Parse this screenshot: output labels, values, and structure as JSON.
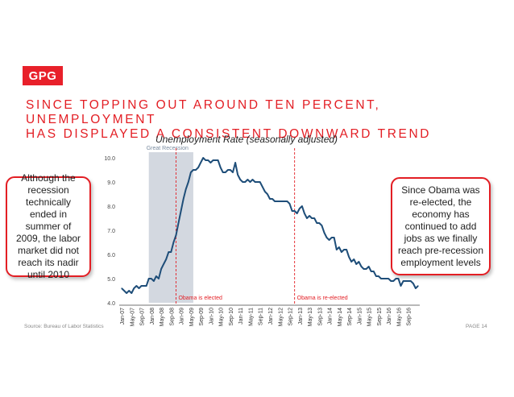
{
  "logo": "GPG",
  "headline": {
    "line1": "SINCE TOPPING OUT AROUND TEN PERCENT, UNEMPLOYMENT",
    "line2": "HAS DISPLAYED A CONSISTENT DOWNWARD TREND"
  },
  "callouts": {
    "left": "Although the recession technically ended in summer of 2009, the labor market did not reach its nadir until 2010",
    "right": "Since Obama was re-elected, the economy has continued to add jobs as we finally reach pre-recession employment levels"
  },
  "footer": {
    "source": "Source: Bureau of Labor Statistics",
    "page": "PAGE 14"
  },
  "colors": {
    "accent": "#e31e24",
    "line": "#1f4e79",
    "recession_band": "#d3d8e0"
  },
  "chart_data": {
    "type": "line",
    "title": "Unemployment Rate (seasonally adjusted)",
    "xlabel": "",
    "ylabel": "",
    "ylim": [
      4.0,
      10.0
    ],
    "yticks": [
      "4.0",
      "5.0",
      "6.0",
      "7.0",
      "8.0",
      "9.0",
      "10.0"
    ],
    "x_start": "Jan-07",
    "x_end": "Dec-16",
    "xtick_labels": [
      "Jan-07",
      "May-07",
      "Sep-07",
      "Jan-08",
      "May-08",
      "Sep-08",
      "Jan-09",
      "May-09",
      "Sep-09",
      "Jan-10",
      "May-10",
      "Sep-10",
      "Jan-11",
      "May-11",
      "Sep-11",
      "Jan-12",
      "May-12",
      "Sep-12",
      "Jan-13",
      "May-13",
      "Sep-13",
      "Jan-14",
      "May-14",
      "Sep-14",
      "Jan-15",
      "May-15",
      "Sep-15",
      "Jan-16",
      "May-16",
      "Sep-16"
    ],
    "shaded_region": {
      "label": "Great Recession",
      "from": "Dec-07",
      "to": "Jun-09"
    },
    "events": [
      {
        "label": "Obama is elected",
        "at": "Nov-08"
      },
      {
        "label": "Obama is re-elected",
        "at": "Nov-12"
      }
    ],
    "series": [
      {
        "values": [
          4.6,
          4.5,
          4.4,
          4.5,
          4.4,
          4.6,
          4.7,
          4.6,
          4.7,
          4.7,
          4.7,
          5.0,
          5.0,
          4.9,
          5.1,
          5.0,
          5.4,
          5.6,
          5.8,
          6.1,
          6.1,
          6.5,
          6.8,
          7.3,
          7.8,
          8.3,
          8.7,
          9.0,
          9.4,
          9.5,
          9.5,
          9.6,
          9.8,
          10.0,
          9.9,
          9.9,
          9.8,
          9.9,
          9.9,
          9.9,
          9.6,
          9.4,
          9.4,
          9.5,
          9.5,
          9.4,
          9.8,
          9.3,
          9.1,
          9.0,
          9.0,
          9.1,
          9.0,
          9.1,
          9.0,
          9.0,
          9.0,
          8.8,
          8.6,
          8.5,
          8.3,
          8.3,
          8.2,
          8.2,
          8.2,
          8.2,
          8.2,
          8.2,
          8.1,
          7.8,
          7.8,
          7.7,
          7.9,
          8.0,
          7.7,
          7.5,
          7.6,
          7.5,
          7.5,
          7.3,
          7.3,
          7.2,
          6.9,
          6.7,
          6.6,
          6.7,
          6.7,
          6.2,
          6.3,
          6.1,
          6.2,
          6.2,
          5.9,
          5.7,
          5.8,
          5.6,
          5.7,
          5.5,
          5.4,
          5.4,
          5.5,
          5.3,
          5.3,
          5.1,
          5.1,
          5.0,
          5.0,
          5.0,
          5.0,
          4.9,
          4.9,
          5.0,
          5.0,
          4.7,
          4.9,
          4.9,
          4.9,
          4.9,
          4.8,
          4.6,
          4.7
        ]
      }
    ]
  }
}
